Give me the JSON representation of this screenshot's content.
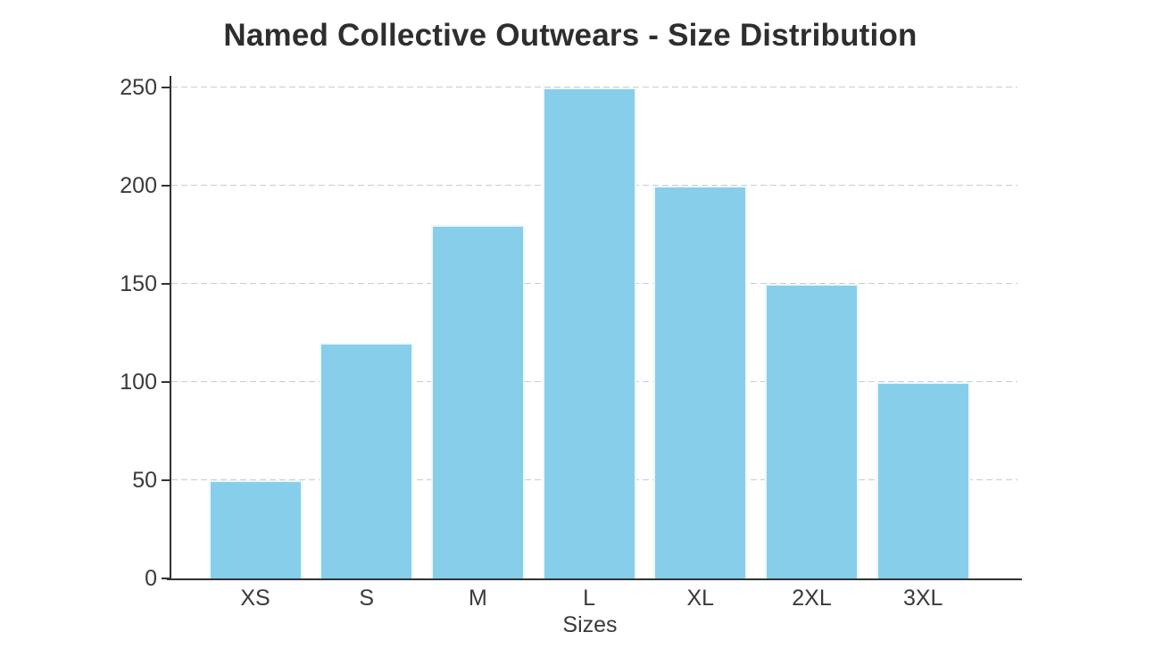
{
  "title": "Named Collective Outwears - Size Distribution",
  "chart_data": {
    "type": "bar",
    "title": "Named Collective Outwears - Size Distribution",
    "categories": [
      "XS",
      "S",
      "M",
      "L",
      "XL",
      "2XL",
      "3XL"
    ],
    "values": [
      50,
      120,
      180,
      250,
      200,
      150,
      100
    ],
    "xlabel": "Sizes",
    "ylabel": "",
    "ylim": [
      0,
      250
    ],
    "yticks": [
      0,
      50,
      100,
      150,
      200,
      250
    ],
    "grid": "horizontal-dashed",
    "legend": "none",
    "colors": {
      "bar_fill": "#87CEEB",
      "bar_edge": "#ffffff",
      "axis": "#333333",
      "gridline": "#cccccc",
      "text": "#3a3a3a",
      "title_text": "#2e2e2e",
      "background": "#ffffff"
    }
  }
}
